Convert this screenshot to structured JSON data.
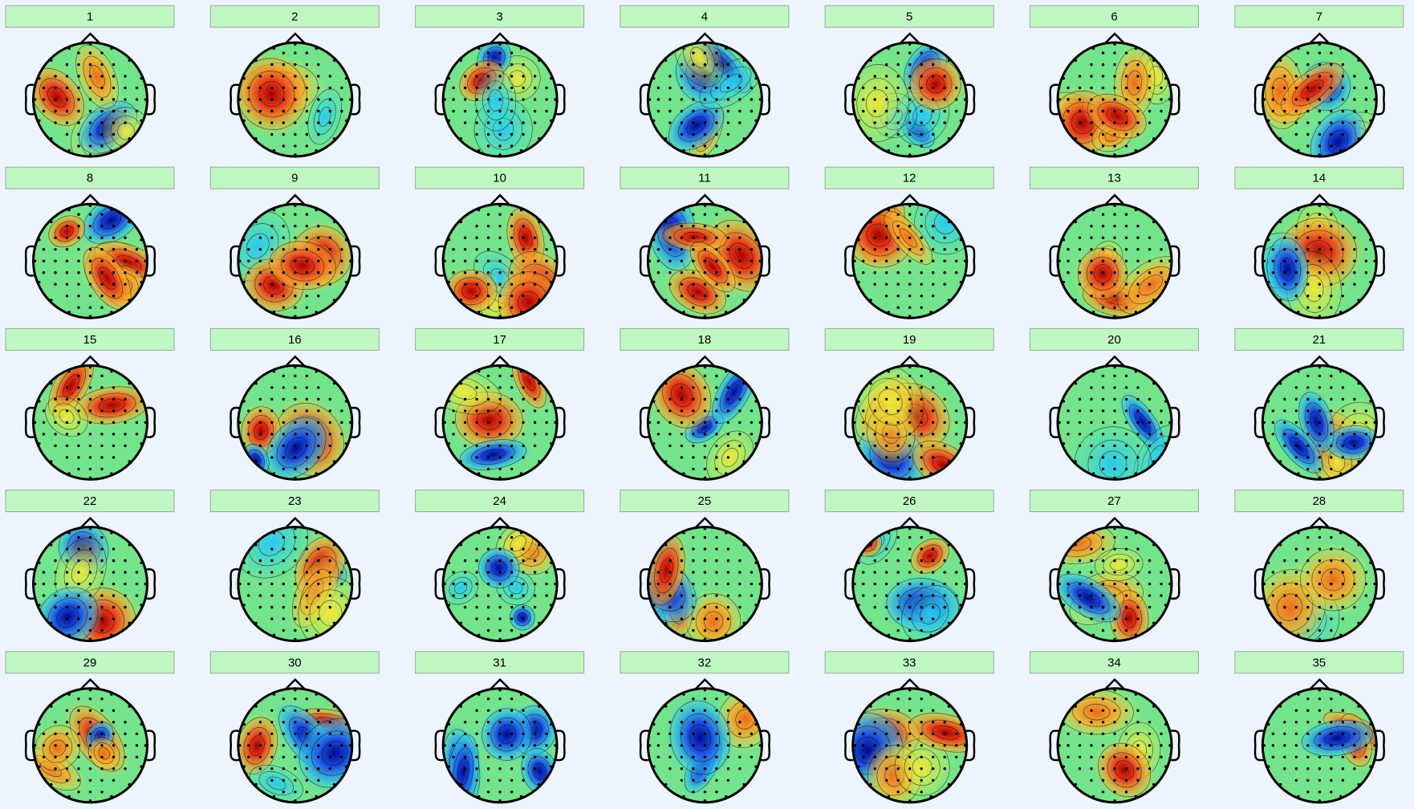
{
  "panels": [
    {
      "label": "1"
    },
    {
      "label": "2"
    },
    {
      "label": "3"
    },
    {
      "label": "4"
    },
    {
      "label": "5"
    },
    {
      "label": "6"
    },
    {
      "label": "7"
    },
    {
      "label": "8"
    },
    {
      "label": "9"
    },
    {
      "label": "10"
    },
    {
      "label": "11"
    },
    {
      "label": "12"
    },
    {
      "label": "13"
    },
    {
      "label": "14"
    },
    {
      "label": "15"
    },
    {
      "label": "16"
    },
    {
      "label": "17"
    },
    {
      "label": "18"
    },
    {
      "label": "19"
    },
    {
      "label": "20"
    },
    {
      "label": "21"
    },
    {
      "label": "22"
    },
    {
      "label": "23"
    },
    {
      "label": "24"
    },
    {
      "label": "25"
    },
    {
      "label": "26"
    },
    {
      "label": "27"
    },
    {
      "label": "28"
    },
    {
      "label": "29"
    },
    {
      "label": "30"
    },
    {
      "label": "31"
    },
    {
      "label": "32"
    },
    {
      "label": "33"
    },
    {
      "label": "34"
    },
    {
      "label": "35"
    }
  ]
}
